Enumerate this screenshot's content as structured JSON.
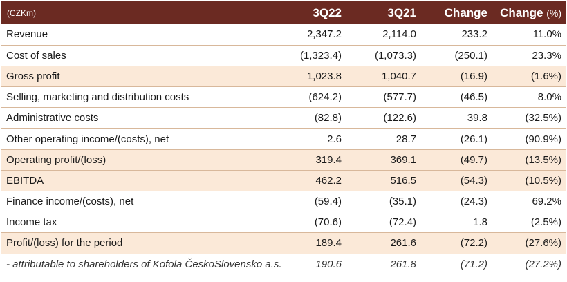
{
  "header": {
    "unit": "(CZKm)",
    "col_q22": "3Q22",
    "col_q21": "3Q21",
    "col_change": "Change",
    "col_change_pct": "Change",
    "col_change_pct_unit": "(%)"
  },
  "rows": [
    {
      "label": "Revenue",
      "q22": "2,347.2",
      "q21": "2,114.0",
      "change": "233.2",
      "pct": "11.0%"
    },
    {
      "label": "Cost of sales",
      "q22": "(1,323.4)",
      "q21": "(1,073.3)",
      "change": "(250.1)",
      "pct": "23.3%"
    },
    {
      "label": "Gross profit",
      "q22": "1,023.8",
      "q21": "1,040.7",
      "change": "(16.9)",
      "pct": "(1.6%)"
    },
    {
      "label": "Selling, marketing and distribution costs",
      "q22": "(624.2)",
      "q21": "(577.7)",
      "change": "(46.5)",
      "pct": "8.0%"
    },
    {
      "label": "Administrative costs",
      "q22": "(82.8)",
      "q21": "(122.6)",
      "change": "39.8",
      "pct": "(32.5%)"
    },
    {
      "label": "Other operating income/(costs), net",
      "q22": "2.6",
      "q21": "28.7",
      "change": "(26.1)",
      "pct": "(90.9%)"
    },
    {
      "label": "Operating profit/(loss)",
      "q22": "319.4",
      "q21": "369.1",
      "change": "(49.7)",
      "pct": "(13.5%)"
    },
    {
      "label": "EBITDA",
      "q22": "462.2",
      "q21": "516.5",
      "change": "(54.3)",
      "pct": "(10.5%)"
    },
    {
      "label": "Finance income/(costs), net",
      "q22": "(59.4)",
      "q21": "(35.1)",
      "change": "(24.3)",
      "pct": "69.2%"
    },
    {
      "label": "Income tax",
      "q22": "(70.6)",
      "q21": "(72.4)",
      "change": "1.8",
      "pct": "(2.5%)"
    },
    {
      "label": "Profit/(loss) for the period",
      "q22": "189.4",
      "q21": "261.6",
      "change": "(72.2)",
      "pct": "(27.6%)"
    },
    {
      "label": "- attributable to shareholders of Kofola ČeskoSlovensko a.s.",
      "q22": "190.6",
      "q21": "261.8",
      "change": "(71.2)",
      "pct": "(27.2%)"
    }
  ],
  "colors": {
    "header_bg": "#6b2a22",
    "highlight_bg": "#fbe9d8",
    "row_divider": "#d8b89b"
  }
}
